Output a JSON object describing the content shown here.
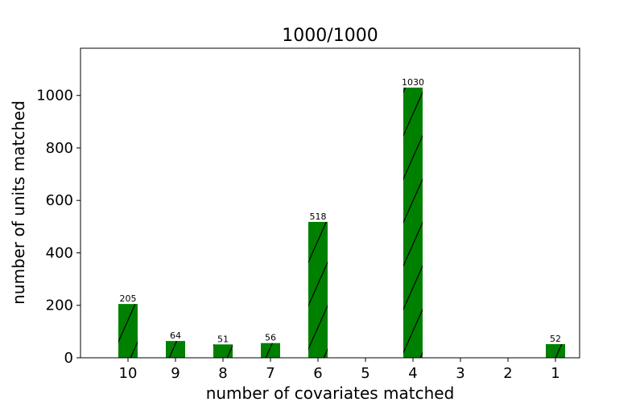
{
  "chart_data": {
    "type": "bar",
    "title": "1000/1000",
    "xlabel": "number of covariates matched",
    "ylabel": "number of units matched",
    "categories": [
      "10",
      "9",
      "8",
      "7",
      "6",
      "5",
      "4",
      "3",
      "2",
      "1"
    ],
    "values": [
      205,
      64,
      51,
      56,
      518,
      0,
      1030,
      0,
      0,
      52
    ],
    "data_labels": [
      "205",
      "64",
      "51",
      "56",
      "518",
      null,
      "1030",
      null,
      null,
      "52"
    ],
    "ylim": [
      0,
      1180
    ],
    "yticks": [
      0,
      200,
      400,
      600,
      800,
      1000
    ],
    "grid": false,
    "bar_color": "#008000",
    "bar_hatch": "diagonal-lines"
  }
}
